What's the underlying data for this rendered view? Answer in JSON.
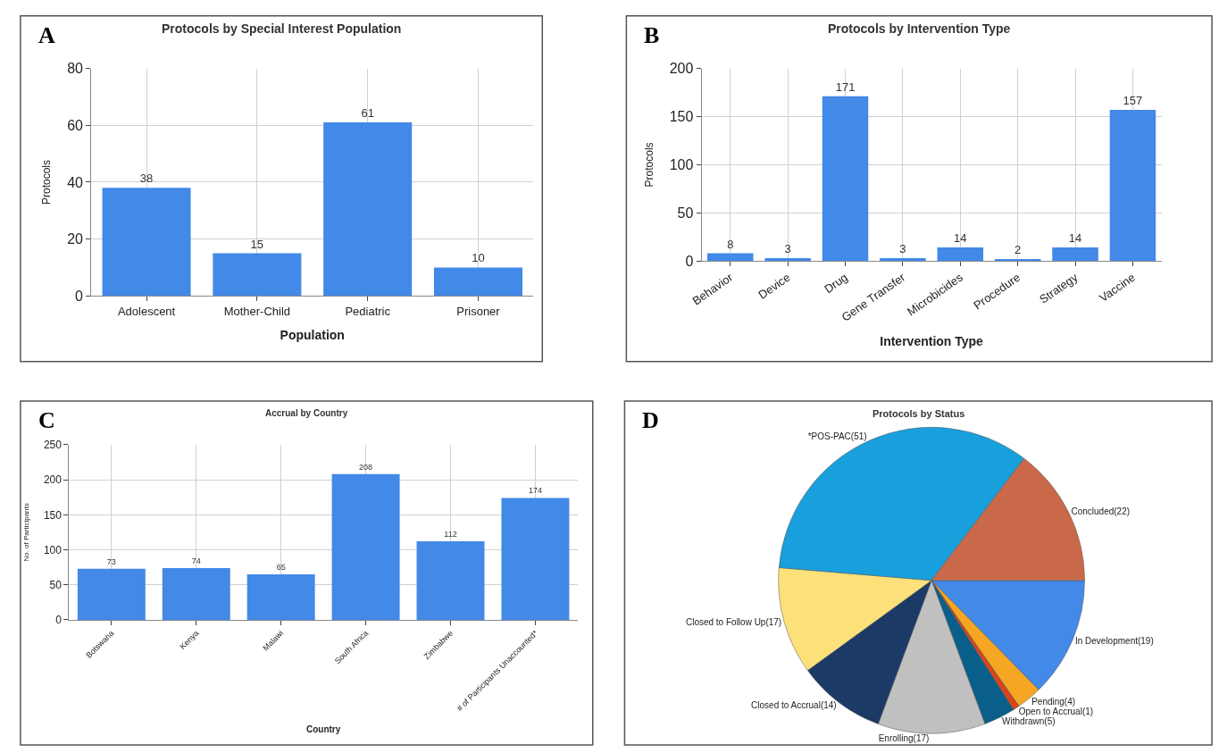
{
  "chart_data": [
    {
      "type": "bar",
      "title": "Protocols by Special Interest Population",
      "xlabel": "Population",
      "ylabel": "Protocols",
      "annotations": [
        "A"
      ],
      "categories": [
        "Adolescent",
        "Mother-Child",
        "Pediatric",
        "Prisoner"
      ],
      "values": [
        38,
        15,
        61,
        10
      ],
      "color": "#4289e8",
      "ylim": [
        0,
        80
      ],
      "yticks": [
        0,
        20,
        40,
        60,
        80
      ],
      "grid": true,
      "data_labels": true
    },
    {
      "type": "bar",
      "title": "Protocols by Intervention Type",
      "xlabel": "Intervention Type",
      "ylabel": "Protocols",
      "annotations": [
        "B"
      ],
      "categories": [
        "Behavior",
        "Device",
        "Drug",
        "Gene Transfer",
        "Microbicides",
        "Procedure",
        "Strategy",
        "Vaccine"
      ],
      "values": [
        8,
        3,
        171,
        3,
        14,
        2,
        14,
        157
      ],
      "color": "#4289e8",
      "ylim": [
        0,
        200
      ],
      "yticks": [
        0,
        50,
        100,
        150,
        200
      ],
      "grid": true,
      "data_labels": true
    },
    {
      "type": "bar",
      "title": "Accrual by Country",
      "xlabel": "Country",
      "ylabel": "No. of Participants",
      "annotations": [
        "C"
      ],
      "categories": [
        "Botswana",
        "Kenya",
        "Malawi",
        "South Africa",
        "Zimbabwe",
        "# of Participants Unaccounted*"
      ],
      "values": [
        73,
        74,
        65,
        208,
        112,
        174
      ],
      "color": "#4289e8",
      "ylim": [
        0,
        250
      ],
      "yticks": [
        0,
        50,
        100,
        150,
        200,
        250
      ],
      "grid": true,
      "data_labels": true
    },
    {
      "type": "pie",
      "title": "Protocols by Status",
      "annotations": [
        "D"
      ],
      "categories": [
        "In Development(19)",
        "Pending(4)",
        "Open to Accrual(1)",
        "Withdrawn(5)",
        "Enrolling(17)",
        "Closed to Accrual(14)",
        "Closed to Follow Up(17)",
        "*POS-PAC(51)",
        "Concluded(22)"
      ],
      "values": [
        19,
        4,
        1,
        5,
        17,
        14,
        17,
        51,
        22
      ],
      "colors": [
        "#4289e8",
        "#f5a623",
        "#d9441a",
        "#0a5f8a",
        "#c0c0c0",
        "#1b3a66",
        "#fce07a",
        "#199fdc",
        "#c9694a"
      ]
    }
  ]
}
